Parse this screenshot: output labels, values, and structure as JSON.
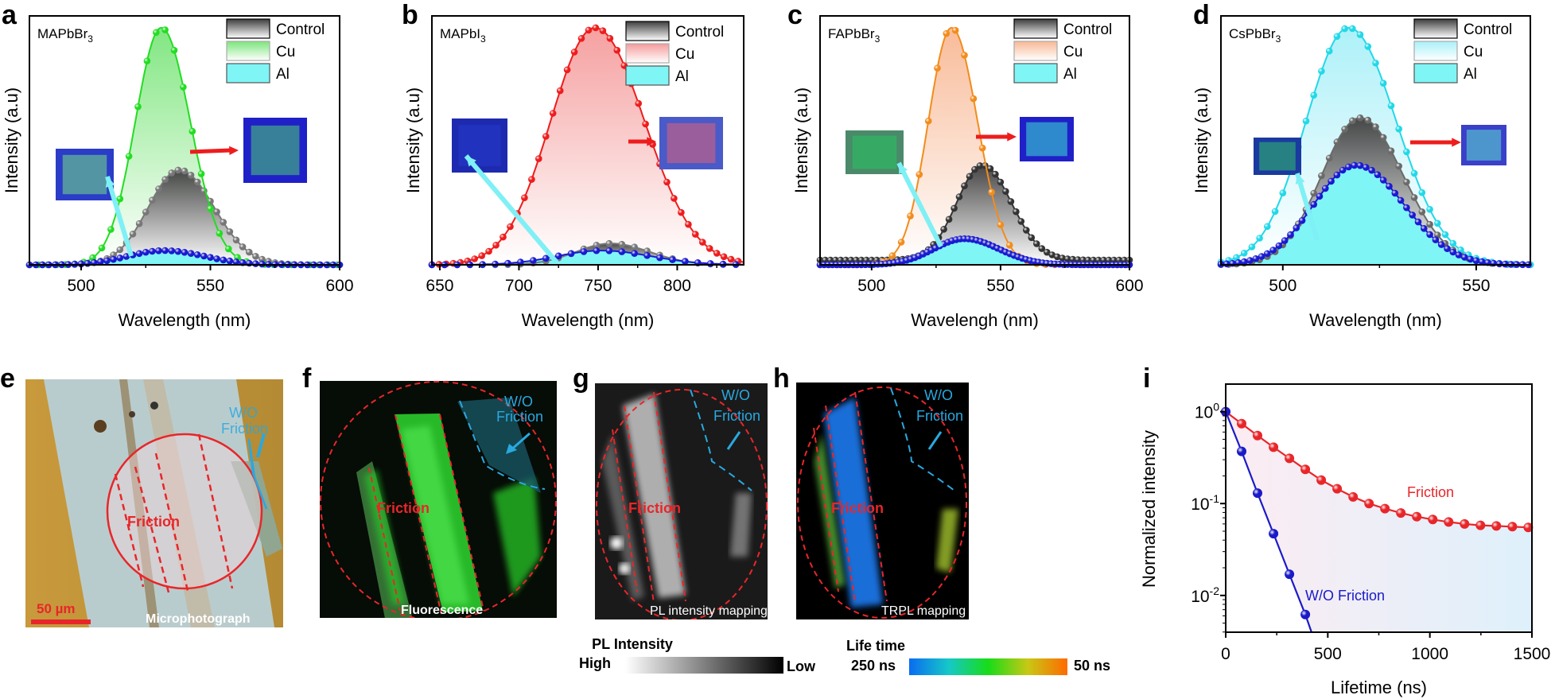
{
  "figure": {
    "panels": {
      "a": "a",
      "b": "b",
      "c": "c",
      "d": "d",
      "e": "e",
      "f": "f",
      "g": "g",
      "h": "h",
      "i": "i"
    },
    "legend_labels": [
      "Control",
      "Cu",
      "Al"
    ],
    "image_panels": {
      "e": {
        "caption": "Microphotograph",
        "friction_label": "Friction",
        "wo_label_1": "W/O",
        "wo_label_2": "Friction",
        "scale_bar": "50 µm"
      },
      "f": {
        "caption": "Fluorescence",
        "friction_label": "Friction",
        "wo_label_1": "W/O",
        "wo_label_2": "Friction"
      },
      "g": {
        "caption": "PL intensity mapping",
        "friction_label": "Friction",
        "wo_label_1": "W/O",
        "wo_label_2": "Friction"
      },
      "h": {
        "caption": "TRPL mapping",
        "friction_label": "Friction",
        "wo_label_1": "W/O",
        "wo_label_2": "Friction"
      }
    },
    "colorbars": {
      "pl_intensity": {
        "title": "PL Intensity",
        "left": "High",
        "right": "Low",
        "colors": [
          "#ffffff",
          "#000000"
        ]
      },
      "lifetime": {
        "title": "Life time",
        "left": "250 ns",
        "right": "50 ns",
        "colors": [
          "#0a6cf0",
          "#16c8c8",
          "#18dc18",
          "#c8c814",
          "#ff6a00"
        ]
      }
    }
  },
  "chart_data": [
    {
      "id": "a",
      "type": "line",
      "sample": "MAPbBr",
      "sample_sub": "3",
      "xlabel": "Wavelength (nm)",
      "ylabel": "Intensity (a.u)",
      "xlim": [
        480,
        600
      ],
      "ylim": [
        0,
        1.05
      ],
      "xticks": [
        500,
        550,
        600
      ],
      "xminor": [
        525,
        575
      ],
      "legend": "top-right",
      "series": [
        {
          "name": "Control",
          "color": "#777777",
          "peak": 538,
          "amplitude": 0.4,
          "width": 12,
          "baseline": 0.0,
          "step": 2.5
        },
        {
          "name": "Cu",
          "color": "#22dd22",
          "fill": "#7be57b",
          "peak": 531,
          "amplitude": 1.0,
          "width": 10,
          "baseline": 0.0,
          "step": 3.5
        },
        {
          "name": "Al",
          "color": "#1a1ad0",
          "fill": "#7ff5f5",
          "peak": 532,
          "amplitude": 0.06,
          "width": 14,
          "baseline": 0.0,
          "step": 2.5
        }
      ]
    },
    {
      "id": "b",
      "type": "line",
      "sample": "MAPbI",
      "sample_sub": "3",
      "xlabel": "Wavelength (nm)",
      "ylabel": "Intensity (a.u)",
      "xlim": [
        645,
        842
      ],
      "ylim": [
        0,
        1.05
      ],
      "xticks": [
        650,
        700,
        750,
        800
      ],
      "xminor": [
        675,
        725,
        775,
        825
      ],
      "legend": "top-right",
      "series": [
        {
          "name": "Control",
          "color": "#777777",
          "peak": 758,
          "amplitude": 0.09,
          "width": 22,
          "baseline": 0.0,
          "step": 8
        },
        {
          "name": "Cu",
          "color": "#ee1c1c",
          "fill": "#f59b9b",
          "peak": 748,
          "amplitude": 1.0,
          "width": 28,
          "baseline": 0.0,
          "step": 4.5
        },
        {
          "name": "Al",
          "color": "#1a1ad0",
          "fill": "#7ff5f5",
          "peak": 752,
          "amplitude": 0.06,
          "width": 28,
          "baseline": 0.0,
          "step": 8
        }
      ]
    },
    {
      "id": "c",
      "type": "line",
      "sample": "FAPbBr",
      "sample_sub": "3",
      "xlabel": "Wavelengh (nm)",
      "ylabel": "Intensity (a.u)",
      "xlim": [
        480,
        600
      ],
      "ylim": [
        0,
        1.05
      ],
      "xticks": [
        500,
        550,
        600
      ],
      "xminor": [
        525,
        575
      ],
      "legend": "top-right",
      "series": [
        {
          "name": "Control",
          "color": "#333333",
          "peak": 543,
          "amplitude": 0.4,
          "width": 10,
          "baseline": 0.02,
          "step": 2
        },
        {
          "name": "Cu",
          "color": "#f28c1c",
          "fill": "#f8c3a4",
          "peak": 531,
          "amplitude": 1.0,
          "width": 9,
          "baseline": 0.0,
          "step": 3.5
        },
        {
          "name": "Al",
          "color": "#1a1ad0",
          "fill": "#7ff5f5",
          "peak": 536,
          "amplitude": 0.11,
          "width": 12,
          "baseline": 0.0,
          "step": 1.6
        }
      ]
    },
    {
      "id": "d",
      "type": "line",
      "sample": "CsPbBr",
      "sample_sub": "3",
      "xlabel": "Wavelength (nm)",
      "ylabel": "Intensity (a.u)",
      "xlim": [
        484,
        564
      ],
      "ylim": [
        0,
        1.05
      ],
      "xticks": [
        500,
        550
      ],
      "xminor": [
        525
      ],
      "legend": "top-right",
      "series": [
        {
          "name": "Control",
          "color": "#6a6a6a",
          "peak": 520,
          "amplitude": 0.62,
          "width": 10,
          "baseline": 0.0,
          "step": 2
        },
        {
          "name": "Cu",
          "color": "#22d8e8",
          "fill": "#c9f7fb",
          "peak": 517,
          "amplitude": 1.0,
          "width": 11,
          "baseline": 0.0,
          "step": 2
        },
        {
          "name": "Al",
          "color": "#1a1ad0",
          "fill": "#7ff5f5",
          "peak": 519,
          "amplitude": 0.42,
          "width": 11,
          "baseline": 0.0,
          "step": 1.5
        }
      ]
    },
    {
      "id": "i",
      "type": "line",
      "scale": "log",
      "xlabel": "Lifetime (ns)",
      "ylabel": "Normalized intensity",
      "xlim": [
        0,
        1500
      ],
      "ylim_log10": [
        -2.4,
        0.3
      ],
      "xticks": [
        0,
        500,
        1000,
        1500
      ],
      "xminor": [
        250,
        750,
        1250
      ],
      "yticks": [
        {
          "value": 1,
          "base": "10",
          "exp": "0"
        },
        {
          "value": 0.1,
          "base": "10",
          "exp": "-1"
        },
        {
          "value": 0.01,
          "base": "10",
          "exp": "-2"
        }
      ],
      "annotations": [
        {
          "text": "Friction",
          "color": "#e8262a"
        },
        {
          "text": "W/O Friction",
          "color": "#1a1ac8"
        }
      ],
      "series": [
        {
          "name": "Friction",
          "color": "#e8262a",
          "x": [
            0,
            78,
            156,
            234,
            312,
            390,
            468,
            546,
            624,
            702,
            780,
            858,
            936,
            1014,
            1092,
            1170,
            1248,
            1326,
            1404,
            1482
          ],
          "y": [
            1.0,
            0.74,
            0.55,
            0.41,
            0.31,
            0.235,
            0.18,
            0.145,
            0.118,
            0.1,
            0.088,
            0.079,
            0.072,
            0.067,
            0.063,
            0.06,
            0.058,
            0.057,
            0.056,
            0.055
          ]
        },
        {
          "name": "W/O Friction",
          "color": "#1a1ac8",
          "x": [
            0,
            78,
            156,
            234,
            312,
            390,
            420
          ],
          "y": [
            1.0,
            0.37,
            0.13,
            0.047,
            0.017,
            0.0062,
            0.004
          ]
        }
      ]
    }
  ]
}
